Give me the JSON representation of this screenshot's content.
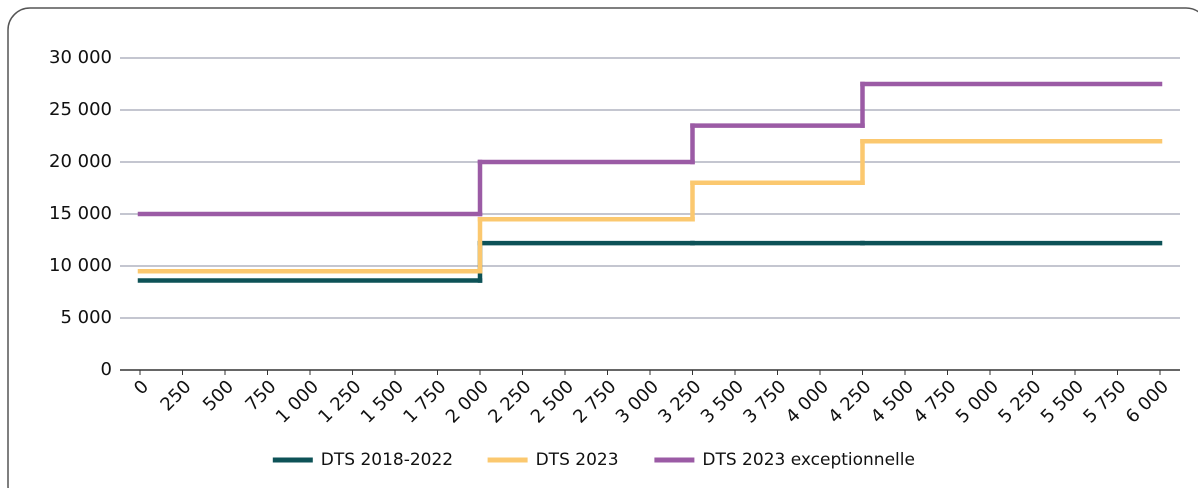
{
  "chart_data": {
    "type": "step",
    "x": [
      0,
      2000,
      3250,
      4250
    ],
    "series": [
      {
        "name": "DTS 2018-2022",
        "color": "#0d5257",
        "values": [
          8600,
          12200,
          12200,
          12200
        ]
      },
      {
        "name": "DTS 2023",
        "color": "#fbc86f",
        "values": [
          9500,
          14500,
          18000,
          22000
        ]
      },
      {
        "name": "DTS 2023 exceptionnelle",
        "color": "#9b5ba5",
        "values": [
          15000,
          20000,
          23500,
          27500
        ]
      }
    ],
    "xlim": [
      0,
      6000
    ],
    "xticks": [
      0,
      250,
      500,
      750,
      {
        "value": 1000,
        "label": "1 000"
      },
      {
        "value": 1250,
        "label": "1 250"
      },
      {
        "value": 1500,
        "label": "1 500"
      },
      {
        "value": 1750,
        "label": "1 750"
      },
      {
        "value": 2000,
        "label": "2 000"
      },
      {
        "value": 2250,
        "label": "2 250"
      },
      {
        "value": 2500,
        "label": "2 500"
      },
      {
        "value": 2750,
        "label": "2 750"
      },
      {
        "value": 3000,
        "label": "3 000"
      },
      {
        "value": 3250,
        "label": "3 250"
      },
      {
        "value": 3500,
        "label": "3 500"
      },
      {
        "value": 3750,
        "label": "3 750"
      },
      {
        "value": 4000,
        "label": "4 000"
      },
      {
        "value": 4250,
        "label": "4 250"
      },
      {
        "value": 4500,
        "label": "4 500"
      },
      {
        "value": 4750,
        "label": "4 750"
      },
      {
        "value": 5000,
        "label": "5 000"
      },
      {
        "value": 5250,
        "label": "5 250"
      },
      {
        "value": 5500,
        "label": "5 500"
      },
      {
        "value": 5750,
        "label": "5 750"
      },
      {
        "value": 6000,
        "label": "6 000"
      }
    ],
    "ylim": [
      0,
      30000
    ],
    "yticks": [
      0,
      {
        "value": 5000,
        "label": "5 000"
      },
      {
        "value": 10000,
        "label": "10 000"
      },
      {
        "value": 15000,
        "label": "15 000"
      },
      {
        "value": 20000,
        "label": "20 000"
      },
      {
        "value": 25000,
        "label": "25 000"
      },
      {
        "value": 30000,
        "label": "30 000"
      }
    ],
    "grid": true,
    "legend": "bottom"
  }
}
